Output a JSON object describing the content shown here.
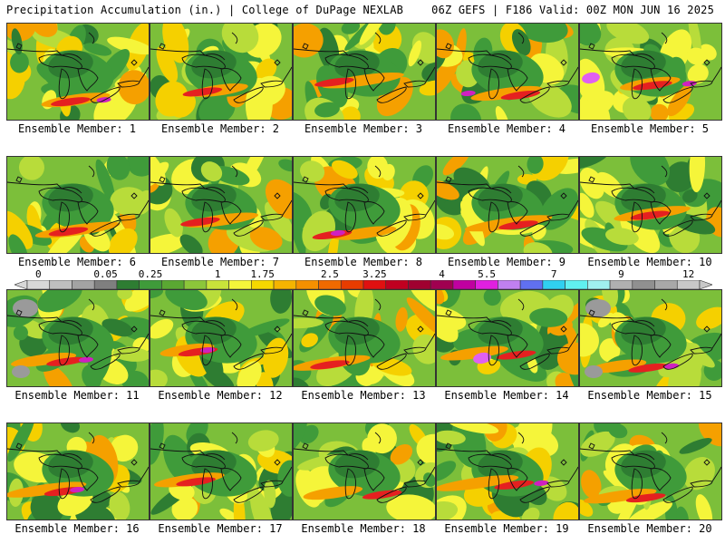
{
  "header": {
    "left": "Precipitation Accumulation (in.) | College of DuPage NEXLAB",
    "right": "06Z GEFS | F186 Valid: 00Z MON JUN 16 2025"
  },
  "members": [
    {
      "label": "Ensemble Member: 1"
    },
    {
      "label": "Ensemble Member: 2"
    },
    {
      "label": "Ensemble Member: 3"
    },
    {
      "label": "Ensemble Member: 4"
    },
    {
      "label": "Ensemble Member: 5"
    },
    {
      "label": "Ensemble Member: 6"
    },
    {
      "label": "Ensemble Member: 7"
    },
    {
      "label": "Ensemble Member: 8"
    },
    {
      "label": "Ensemble Member: 9"
    },
    {
      "label": "Ensemble Member: 10"
    },
    {
      "label": "Ensemble Member: 11"
    },
    {
      "label": "Ensemble Member: 12"
    },
    {
      "label": "Ensemble Member: 13"
    },
    {
      "label": "Ensemble Member: 14"
    },
    {
      "label": "Ensemble Member: 15"
    },
    {
      "label": "Ensemble Member: 16"
    },
    {
      "label": "Ensemble Member: 17"
    },
    {
      "label": "Ensemble Member: 18"
    },
    {
      "label": "Ensemble Member: 19"
    },
    {
      "label": "Ensemble Member: 20"
    }
  ],
  "colorbar": {
    "ticks": [
      "0",
      "0.05",
      "0.25",
      "1",
      "1.75",
      "2.5",
      "3.25",
      "4",
      "5.5",
      "7",
      "9",
      "12"
    ],
    "colors": [
      "#d8d8d8",
      "#bfbfbf",
      "#a3a3a3",
      "#7f7f7f",
      "#2e7d32",
      "#3f9b3a",
      "#5aa832",
      "#8cc63a",
      "#c9e33a",
      "#f5f53a",
      "#f5d800",
      "#f5b400",
      "#f59000",
      "#f06a00",
      "#e83c00",
      "#e01010",
      "#c00020",
      "#a00030",
      "#a00050",
      "#c000a0",
      "#e020e0",
      "#c080f0",
      "#6070f0",
      "#30d0f0",
      "#60f0f0",
      "#a0f0f0",
      "#b0b0b0",
      "#909090",
      "#a8a8a8",
      "#c8c8c8"
    ]
  }
}
